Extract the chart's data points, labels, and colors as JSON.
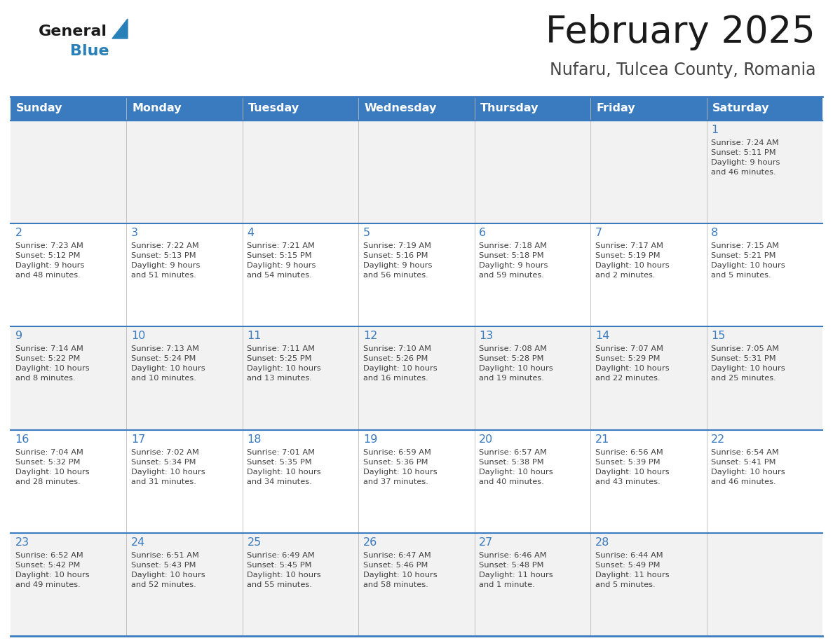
{
  "title": "February 2025",
  "subtitle": "Nufaru, Tulcea County, Romania",
  "days_of_week": [
    "Sunday",
    "Monday",
    "Tuesday",
    "Wednesday",
    "Thursday",
    "Friday",
    "Saturday"
  ],
  "header_bg": "#3a7abf",
  "header_text": "#ffffff",
  "row_bg": [
    "#f2f2f2",
    "#ffffff",
    "#f2f2f2",
    "#ffffff",
    "#f2f2f2"
  ],
  "border_color": "#3a7abf",
  "day_number_color": "#3a7abf",
  "cell_text_color": "#404040",
  "title_color": "#1a1a1a",
  "subtitle_color": "#444444",
  "logo_general_color": "#1a1a1a",
  "logo_blue_color": "#2980b9",
  "logo_triangle_color": "#2980b9",
  "calendar_data": [
    [
      null,
      null,
      null,
      null,
      null,
      null,
      {
        "day": "1",
        "sunrise": "7:24 AM",
        "sunset": "5:11 PM",
        "daylight": "9 hours\nand 46 minutes."
      }
    ],
    [
      {
        "day": "2",
        "sunrise": "7:23 AM",
        "sunset": "5:12 PM",
        "daylight": "9 hours\nand 48 minutes."
      },
      {
        "day": "3",
        "sunrise": "7:22 AM",
        "sunset": "5:13 PM",
        "daylight": "9 hours\nand 51 minutes."
      },
      {
        "day": "4",
        "sunrise": "7:21 AM",
        "sunset": "5:15 PM",
        "daylight": "9 hours\nand 54 minutes."
      },
      {
        "day": "5",
        "sunrise": "7:19 AM",
        "sunset": "5:16 PM",
        "daylight": "9 hours\nand 56 minutes."
      },
      {
        "day": "6",
        "sunrise": "7:18 AM",
        "sunset": "5:18 PM",
        "daylight": "9 hours\nand 59 minutes."
      },
      {
        "day": "7",
        "sunrise": "7:17 AM",
        "sunset": "5:19 PM",
        "daylight": "10 hours\nand 2 minutes."
      },
      {
        "day": "8",
        "sunrise": "7:15 AM",
        "sunset": "5:21 PM",
        "daylight": "10 hours\nand 5 minutes."
      }
    ],
    [
      {
        "day": "9",
        "sunrise": "7:14 AM",
        "sunset": "5:22 PM",
        "daylight": "10 hours\nand 8 minutes."
      },
      {
        "day": "10",
        "sunrise": "7:13 AM",
        "sunset": "5:24 PM",
        "daylight": "10 hours\nand 10 minutes."
      },
      {
        "day": "11",
        "sunrise": "7:11 AM",
        "sunset": "5:25 PM",
        "daylight": "10 hours\nand 13 minutes."
      },
      {
        "day": "12",
        "sunrise": "7:10 AM",
        "sunset": "5:26 PM",
        "daylight": "10 hours\nand 16 minutes."
      },
      {
        "day": "13",
        "sunrise": "7:08 AM",
        "sunset": "5:28 PM",
        "daylight": "10 hours\nand 19 minutes."
      },
      {
        "day": "14",
        "sunrise": "7:07 AM",
        "sunset": "5:29 PM",
        "daylight": "10 hours\nand 22 minutes."
      },
      {
        "day": "15",
        "sunrise": "7:05 AM",
        "sunset": "5:31 PM",
        "daylight": "10 hours\nand 25 minutes."
      }
    ],
    [
      {
        "day": "16",
        "sunrise": "7:04 AM",
        "sunset": "5:32 PM",
        "daylight": "10 hours\nand 28 minutes."
      },
      {
        "day": "17",
        "sunrise": "7:02 AM",
        "sunset": "5:34 PM",
        "daylight": "10 hours\nand 31 minutes."
      },
      {
        "day": "18",
        "sunrise": "7:01 AM",
        "sunset": "5:35 PM",
        "daylight": "10 hours\nand 34 minutes."
      },
      {
        "day": "19",
        "sunrise": "6:59 AM",
        "sunset": "5:36 PM",
        "daylight": "10 hours\nand 37 minutes."
      },
      {
        "day": "20",
        "sunrise": "6:57 AM",
        "sunset": "5:38 PM",
        "daylight": "10 hours\nand 40 minutes."
      },
      {
        "day": "21",
        "sunrise": "6:56 AM",
        "sunset": "5:39 PM",
        "daylight": "10 hours\nand 43 minutes."
      },
      {
        "day": "22",
        "sunrise": "6:54 AM",
        "sunset": "5:41 PM",
        "daylight": "10 hours\nand 46 minutes."
      }
    ],
    [
      {
        "day": "23",
        "sunrise": "6:52 AM",
        "sunset": "5:42 PM",
        "daylight": "10 hours\nand 49 minutes."
      },
      {
        "day": "24",
        "sunrise": "6:51 AM",
        "sunset": "5:43 PM",
        "daylight": "10 hours\nand 52 minutes."
      },
      {
        "day": "25",
        "sunrise": "6:49 AM",
        "sunset": "5:45 PM",
        "daylight": "10 hours\nand 55 minutes."
      },
      {
        "day": "26",
        "sunrise": "6:47 AM",
        "sunset": "5:46 PM",
        "daylight": "10 hours\nand 58 minutes."
      },
      {
        "day": "27",
        "sunrise": "6:46 AM",
        "sunset": "5:48 PM",
        "daylight": "11 hours\nand 1 minute."
      },
      {
        "day": "28",
        "sunrise": "6:44 AM",
        "sunset": "5:49 PM",
        "daylight": "11 hours\nand 5 minutes."
      },
      null
    ]
  ]
}
